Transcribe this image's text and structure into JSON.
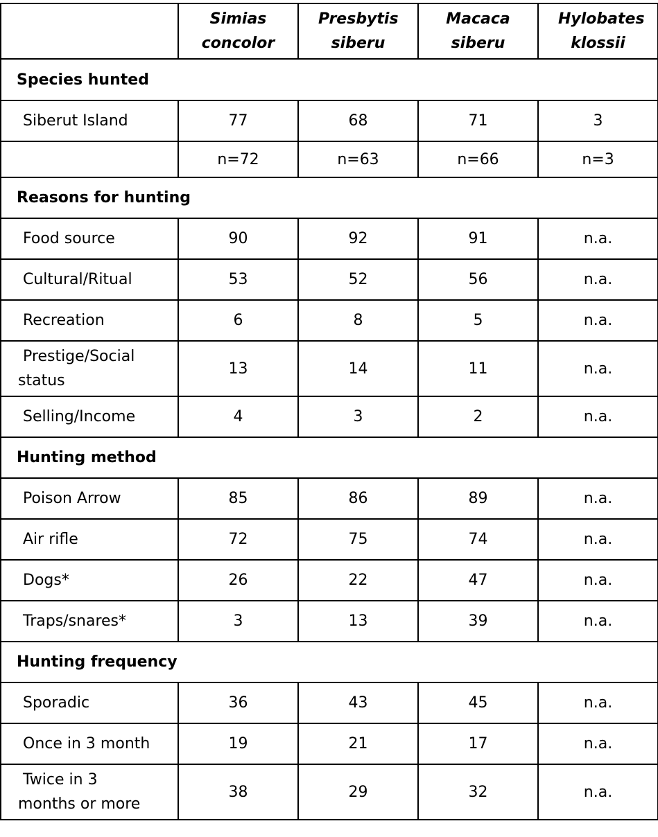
{
  "columns": [
    "",
    "Simias concolor",
    "Presbytis siberu",
    "Macaca siberu",
    "Hylobates klossii"
  ],
  "sections": [
    {
      "title": "Species hunted",
      "rows": [
        {
          "label": " Siberut Island",
          "values": [
            "77",
            "68",
            "71",
            "3"
          ]
        },
        {
          "label": "",
          "values": [
            "n=72",
            "n=63",
            "n=66",
            "n=3"
          ]
        }
      ]
    },
    {
      "title": "Reasons for hunting",
      "rows": [
        {
          "label": " Food source",
          "values": [
            "90",
            "92",
            "91",
            "n.a."
          ]
        },
        {
          "label": " Cultural/Ritual",
          "values": [
            "53",
            "52",
            "56",
            "n.a."
          ]
        },
        {
          "label": " Recreation",
          "values": [
            "6",
            "8",
            "5",
            "n.a."
          ]
        },
        {
          "label": " Prestige/Social status",
          "values": [
            "13",
            "14",
            "11",
            "n.a."
          ]
        },
        {
          "label": " Selling/Income",
          "values": [
            "4",
            "3",
            "2",
            "n.a."
          ]
        }
      ]
    },
    {
      "title": "Hunting method",
      "rows": [
        {
          "label": " Poison Arrow",
          "values": [
            "85",
            "86",
            "89",
            "n.a."
          ]
        },
        {
          "label": " Air rifle",
          "values": [
            "72",
            "75",
            "74",
            "n.a."
          ]
        },
        {
          "label": " Dogs*",
          "values": [
            "26",
            "22",
            "47",
            "n.a."
          ]
        },
        {
          "label": " Traps/snares*",
          "values": [
            "3",
            "13",
            "39",
            "n.a."
          ]
        }
      ]
    },
    {
      "title": "Hunting frequency",
      "rows": [
        {
          "label": " Sporadic",
          "values": [
            "36",
            "43",
            "45",
            "n.a."
          ]
        },
        {
          "label": " Once in 3 month",
          "values": [
            "19",
            "21",
            "17",
            "n.a."
          ]
        },
        {
          "label": " Twice in 3 months or more",
          "values": [
            "38",
            "29",
            "32",
            "n.a."
          ]
        }
      ]
    }
  ]
}
